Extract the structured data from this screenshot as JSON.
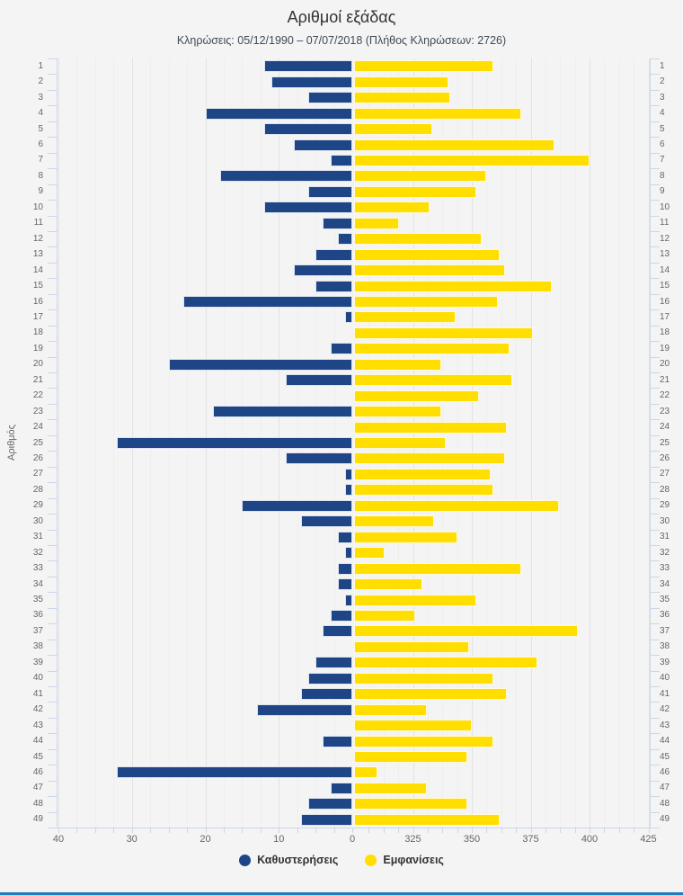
{
  "title": "Αριθμοί εξάδας",
  "subtitle": "Κληρώσεις: 05/12/1990 – 07/07/2018 (Πλήθος Κληρώσεων: 2726)",
  "y_axis_title": "Αριθμός",
  "legend": [
    {
      "label": "Καθυστερήσεις",
      "color": "#1E4687"
    },
    {
      "label": "Εμφανίσεις",
      "color": "#FFDE00"
    }
  ],
  "colors": {
    "delay_bar": "#1E4687",
    "appearance_bar": "#FFDE00",
    "accent_line": "#2579BD",
    "axis": "#ccd6eb",
    "label": "#666666"
  },
  "chart_data": {
    "type": "bar",
    "orientation": "horizontal-mirrored",
    "title": "Αριθμοί εξάδας",
    "subtitle": "Κληρώσεις: 05/12/1990 – 07/07/2018 (Πλήθος Κληρώσεων: 2726)",
    "ylabel": "Αριθμός",
    "grid": true,
    "legend_position": "bottom",
    "categories": [
      1,
      2,
      3,
      4,
      5,
      6,
      7,
      8,
      9,
      10,
      11,
      12,
      13,
      14,
      15,
      16,
      17,
      18,
      19,
      20,
      21,
      22,
      23,
      24,
      25,
      26,
      27,
      28,
      29,
      30,
      31,
      32,
      33,
      34,
      35,
      36,
      37,
      38,
      39,
      40,
      41,
      42,
      43,
      44,
      45,
      46,
      47,
      48,
      49
    ],
    "series": [
      {
        "name": "Καθυστερήσεις",
        "side": "left",
        "axis_ticks": [
          40,
          30,
          20,
          10,
          0
        ],
        "axis_range": [
          0,
          40
        ],
        "minor_step": 2.5,
        "values": [
          12,
          11,
          6,
          20,
          12,
          8,
          3,
          18,
          6,
          12,
          4,
          2,
          5,
          8,
          5,
          23,
          1,
          0,
          3,
          25,
          9,
          0,
          19,
          0,
          32,
          9,
          1,
          1,
          15,
          7,
          2,
          1,
          2,
          2,
          1,
          3,
          4,
          0,
          5,
          6,
          7,
          13,
          0,
          4,
          0,
          32,
          3,
          6,
          7
        ]
      },
      {
        "name": "Εμφανίσεις",
        "side": "right",
        "axis_ticks": [
          325,
          350,
          375,
          400,
          425
        ],
        "axis_range": [
          300,
          425
        ],
        "minor_step": 6.25,
        "values": [
          359,
          340,
          341,
          371,
          333,
          385,
          400,
          356,
          352,
          332,
          319,
          354,
          362,
          364,
          384,
          361,
          343,
          376,
          366,
          337,
          367,
          353,
          337,
          365,
          339,
          364,
          358,
          359,
          387,
          334,
          344,
          313,
          371,
          329,
          352,
          326,
          395,
          349,
          378,
          359,
          365,
          331,
          350,
          359,
          348,
          310,
          331,
          348,
          362
        ]
      }
    ]
  }
}
